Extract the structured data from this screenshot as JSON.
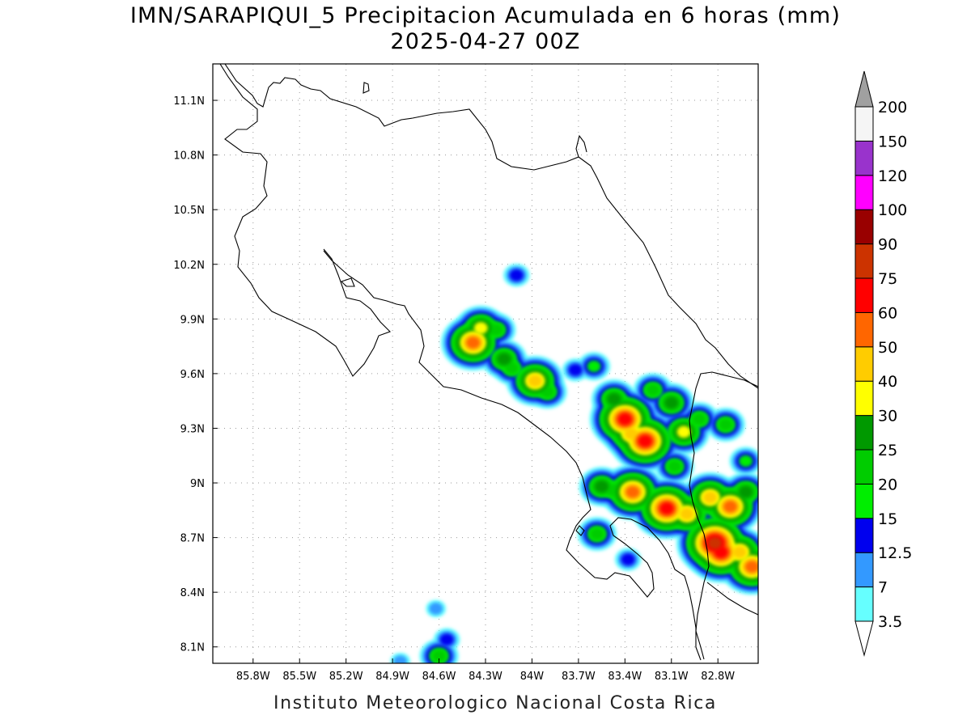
{
  "title": {
    "line1": "IMN/SARAPIQUI_5 Precipitacion Acumulada en 6 horas (mm)",
    "line2": "2025-04-27 00Z"
  },
  "footer": "Instituto Meteorologico Nacional Costa Rica",
  "map": {
    "lon_range": [
      -86.06,
      -82.54
    ],
    "lat_range": [
      8.01,
      11.3
    ],
    "lon_ticks": [
      -85.8,
      -85.5,
      -85.2,
      -84.9,
      -84.6,
      -84.3,
      -84.0,
      -83.7,
      -83.4,
      -83.1,
      -82.8
    ],
    "lon_labels": [
      "85.8W",
      "85.5W",
      "85.2W",
      "84.9W",
      "84.6W",
      "84.3W",
      "84W",
      "83.7W",
      "83.4W",
      "83.1W",
      "82.8W"
    ],
    "lat_ticks": [
      8.1,
      8.4,
      8.7,
      9.0,
      9.3,
      9.6,
      9.9,
      10.2,
      10.5,
      10.8,
      11.1
    ],
    "lat_labels": [
      "8.1N",
      "8.4N",
      "8.7N",
      "9N",
      "9.3N",
      "9.6N",
      "9.9N",
      "10.2N",
      "10.5N",
      "10.8N",
      "11.1N"
    ],
    "grid": true,
    "grid_style": "dotted"
  },
  "colorbar": {
    "labels": [
      "3.5",
      "7",
      "12.5",
      "15",
      "20",
      "25",
      "30",
      "40",
      "50",
      "60",
      "75",
      "90",
      "100",
      "120",
      "150",
      "200"
    ],
    "colors": [
      "#66ffff",
      "#3399ff",
      "#0000ee",
      "#00ee00",
      "#00cc00",
      "#009900",
      "#ffff00",
      "#ffcc00",
      "#ff6600",
      "#ff0000",
      "#cc3300",
      "#990000",
      "#ff00ff",
      "#9933cc",
      "#f5f5f5"
    ],
    "top_extend_color": "#a0a0a0",
    "bottom_extend_color": "#ffffff"
  },
  "chart_data": {
    "type": "heatmap",
    "units": "mm",
    "cells": [
      {
        "lon": -84.38,
        "lat": 9.77,
        "v": 55
      },
      {
        "lon": -84.33,
        "lat": 9.85,
        "v": 32
      },
      {
        "lon": -84.23,
        "lat": 9.84,
        "v": 24
      },
      {
        "lon": -84.18,
        "lat": 9.68,
        "v": 26
      },
      {
        "lon": -84.1,
        "lat": 10.14,
        "v": 13
      },
      {
        "lon": -84.13,
        "lat": 9.63,
        "v": 22
      },
      {
        "lon": -83.98,
        "lat": 9.56,
        "v": 42
      },
      {
        "lon": -83.9,
        "lat": 9.5,
        "v": 24
      },
      {
        "lon": -83.72,
        "lat": 9.62,
        "v": 14
      },
      {
        "lon": -83.6,
        "lat": 9.64,
        "v": 16
      },
      {
        "lon": -83.47,
        "lat": 9.46,
        "v": 28
      },
      {
        "lon": -83.4,
        "lat": 9.35,
        "v": 70
      },
      {
        "lon": -83.36,
        "lat": 9.27,
        "v": 45
      },
      {
        "lon": -83.27,
        "lat": 9.23,
        "v": 62
      },
      {
        "lon": -83.22,
        "lat": 9.51,
        "v": 24
      },
      {
        "lon": -83.1,
        "lat": 9.44,
        "v": 28
      },
      {
        "lon": -83.02,
        "lat": 9.28,
        "v": 30
      },
      {
        "lon": -83.08,
        "lat": 9.09,
        "v": 24
      },
      {
        "lon": -83.55,
        "lat": 8.98,
        "v": 26
      },
      {
        "lon": -83.48,
        "lat": 8.96,
        "v": 22
      },
      {
        "lon": -83.35,
        "lat": 8.95,
        "v": 55
      },
      {
        "lon": -83.13,
        "lat": 8.86,
        "v": 62
      },
      {
        "lon": -83.0,
        "lat": 8.83,
        "v": 40
      },
      {
        "lon": -82.85,
        "lat": 8.92,
        "v": 40
      },
      {
        "lon": -82.72,
        "lat": 8.87,
        "v": 52
      },
      {
        "lon": -82.62,
        "lat": 8.95,
        "v": 28
      },
      {
        "lon": -82.82,
        "lat": 8.67,
        "v": 82
      },
      {
        "lon": -82.78,
        "lat": 8.62,
        "v": 65
      },
      {
        "lon": -82.66,
        "lat": 8.62,
        "v": 48
      },
      {
        "lon": -82.58,
        "lat": 8.54,
        "v": 55
      },
      {
        "lon": -82.92,
        "lat": 9.35,
        "v": 24
      },
      {
        "lon": -82.75,
        "lat": 9.32,
        "v": 22
      },
      {
        "lon": -82.62,
        "lat": 9.12,
        "v": 16
      },
      {
        "lon": -83.58,
        "lat": 8.72,
        "v": 22
      },
      {
        "lon": -83.38,
        "lat": 8.58,
        "v": 13
      },
      {
        "lon": -84.55,
        "lat": 8.14,
        "v": 14
      },
      {
        "lon": -84.6,
        "lat": 8.05,
        "v": 24
      },
      {
        "lon": -84.85,
        "lat": 8.02,
        "v": 10
      },
      {
        "lon": -84.62,
        "lat": 8.31,
        "v": 8
      }
    ]
  }
}
